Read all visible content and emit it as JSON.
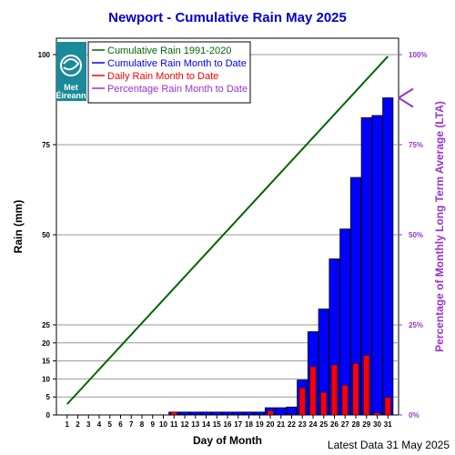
{
  "chart_data": {
    "type": "bar",
    "title": "Newport - Cumulative Rain May   2025",
    "xlabel": "Day of Month",
    "ylabel": "Rain (mm)",
    "y2label": "Percentage  of Monthly Long Term Average (LTA)",
    "footer": "Latest Data 31 May 2025",
    "logo": {
      "line1": "Met",
      "line2": "Éireann"
    },
    "xlim": [
      0,
      32
    ],
    "ylim": [
      0,
      100
    ],
    "y2lim": [
      0,
      100
    ],
    "lta_total": 100,
    "categories": [
      "1",
      "2",
      "3",
      "4",
      "5",
      "6",
      "7",
      "8",
      "9",
      "10",
      "11",
      "12",
      "13",
      "14",
      "15",
      "16",
      "17",
      "18",
      "19",
      "20",
      "21",
      "22",
      "23",
      "24",
      "25",
      "26",
      "27",
      "28",
      "29",
      "30",
      "31"
    ],
    "y_ticks": [
      0,
      5,
      10,
      15,
      20,
      25,
      50,
      75,
      100
    ],
    "y2_ticks": [
      "0%",
      "25%",
      "50%",
      "75%",
      "100%"
    ],
    "y2_tick_values": [
      0,
      25,
      50,
      75,
      100
    ],
    "series": [
      {
        "name": "Cumulative Rain 1991-2020",
        "type": "line",
        "color": "#006600",
        "x": [
          1,
          31
        ],
        "values": [
          3.0,
          99.5
        ]
      },
      {
        "name": "Cumulative Rain Month to Date",
        "type": "bar",
        "color": "#0000ff",
        "values": [
          0,
          0,
          0,
          0,
          0,
          0,
          0,
          0,
          0,
          0,
          0.8,
          0.8,
          0.8,
          0.8,
          0.8,
          0.8,
          0.8,
          0.8,
          0.8,
          2.0,
          2.0,
          2.2,
          9.7,
          23.1,
          29.4,
          43.3,
          51.6,
          65.9,
          82.5,
          83.1,
          88.0
        ]
      },
      {
        "name": "Daily Rain Month to Date",
        "type": "bar",
        "color": "#ff0000",
        "values": [
          0,
          0,
          0,
          0,
          0,
          0,
          0,
          0,
          0,
          0,
          0.8,
          0,
          0,
          0,
          0,
          0,
          0,
          0,
          0,
          1.2,
          0,
          0.2,
          7.5,
          13.4,
          6.3,
          13.9,
          8.3,
          14.3,
          16.6,
          0.6,
          4.9
        ]
      },
      {
        "name": "Percentage Rain Month to Date",
        "type": "marker",
        "color": "#9933cc",
        "value": 88
      }
    ],
    "grid": true,
    "legend": "top-left"
  }
}
